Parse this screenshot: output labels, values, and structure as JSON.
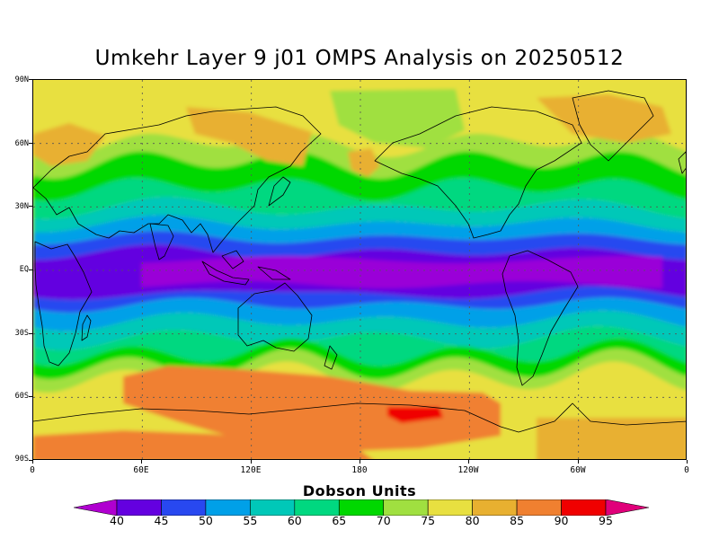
{
  "title": "Umkehr Layer 9 j01 OMPS Analysis on 20250512",
  "lat_labels": [
    "90N",
    "60N",
    "30N",
    "EQ",
    "30S",
    "60S",
    "90S"
  ],
  "lon_labels": [
    "0",
    "60E",
    "120E",
    "180",
    "120W",
    "60W",
    "0"
  ],
  "colorbar": {
    "title": "Dobson Units",
    "labels": [
      "40",
      "45",
      "50",
      "55",
      "60",
      "65",
      "70",
      "75",
      "80",
      "85",
      "90",
      "95"
    ],
    "colors": [
      "#9a00d8",
      "#6400e0",
      "#2848f0",
      "#00a0e8",
      "#00c8b8",
      "#00d880",
      "#00d800",
      "#a0e040",
      "#e8e040",
      "#e8b030",
      "#f08030",
      "#f00000",
      "#e8007c"
    ],
    "below_color": "#b000d0",
    "above_color": "#e0007a"
  },
  "colors": {
    "grid": "#555555",
    "coastline": "#000000"
  }
}
